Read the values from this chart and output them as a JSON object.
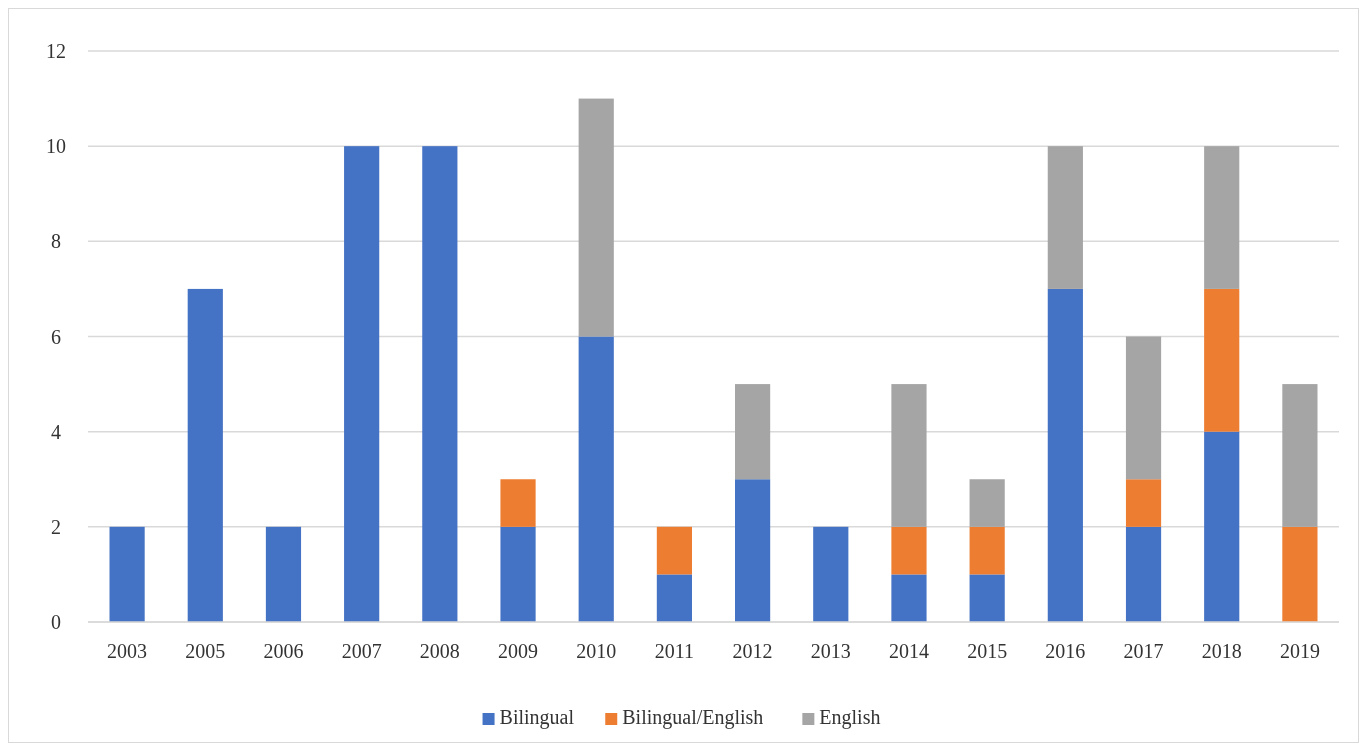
{
  "chart_data": {
    "type": "bar",
    "stacked": true,
    "categories": [
      "2003",
      "2005",
      "2006",
      "2007",
      "2008",
      "2009",
      "2010",
      "2011",
      "2012",
      "2013",
      "2014",
      "2015",
      "2016",
      "2017",
      "2018",
      "2019"
    ],
    "series": [
      {
        "name": "Bilingual",
        "color": "#4472c4",
        "values": [
          2,
          7,
          2,
          10,
          10,
          2,
          6,
          1,
          3,
          2,
          1,
          1,
          7,
          2,
          4,
          0
        ]
      },
      {
        "name": "Bilingual/English",
        "color": "#ed7d31",
        "values": [
          0,
          0,
          0,
          0,
          0,
          1,
          0,
          1,
          0,
          0,
          1,
          1,
          0,
          1,
          3,
          2
        ]
      },
      {
        "name": "English",
        "color": "#a5a5a5",
        "values": [
          0,
          0,
          0,
          0,
          0,
          0,
          5,
          0,
          2,
          0,
          3,
          1,
          3,
          3,
          3,
          3
        ]
      }
    ],
    "ylim": [
      0,
      12
    ],
    "yticks": [
      0,
      2,
      4,
      6,
      8,
      10,
      12
    ],
    "grid": "y",
    "legend": "bottom"
  }
}
